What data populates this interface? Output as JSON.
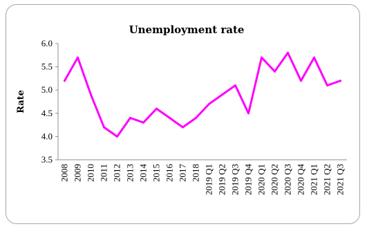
{
  "chart_data": {
    "type": "line",
    "title": "Unemployment rate",
    "xlabel": "",
    "ylabel": "Rate",
    "ylim": [
      3.5,
      6.0
    ],
    "yticks": [
      "3.5",
      "4.0",
      "4.5",
      "5.0",
      "5.5",
      "6.0"
    ],
    "categories": [
      "2008",
      "2009",
      "2010",
      "2011",
      "2012",
      "2013",
      "2014",
      "2015",
      "2016",
      "2017",
      "2018",
      "2019 Q1",
      "2019 Q2",
      "2019 Q3",
      "2019 Q4",
      "2020 Q1",
      "2020 Q2",
      "2020 Q3",
      "2020 Q4",
      "2021 Q1",
      "2021 Q2",
      "2021 Q3"
    ],
    "series": [
      {
        "values": [
          5.2,
          5.7,
          4.9,
          4.2,
          4.0,
          4.4,
          4.3,
          4.6,
          4.4,
          4.2,
          4.4,
          4.7,
          4.9,
          5.1,
          4.5,
          5.7,
          5.4,
          5.8,
          5.2,
          5.7,
          5.1,
          5.2
        ]
      }
    ],
    "grid": false,
    "legend": "none",
    "colors": {
      "series": "#ff00ff",
      "axis": "#8c8c8c",
      "frame": "#a6a6a6"
    }
  }
}
